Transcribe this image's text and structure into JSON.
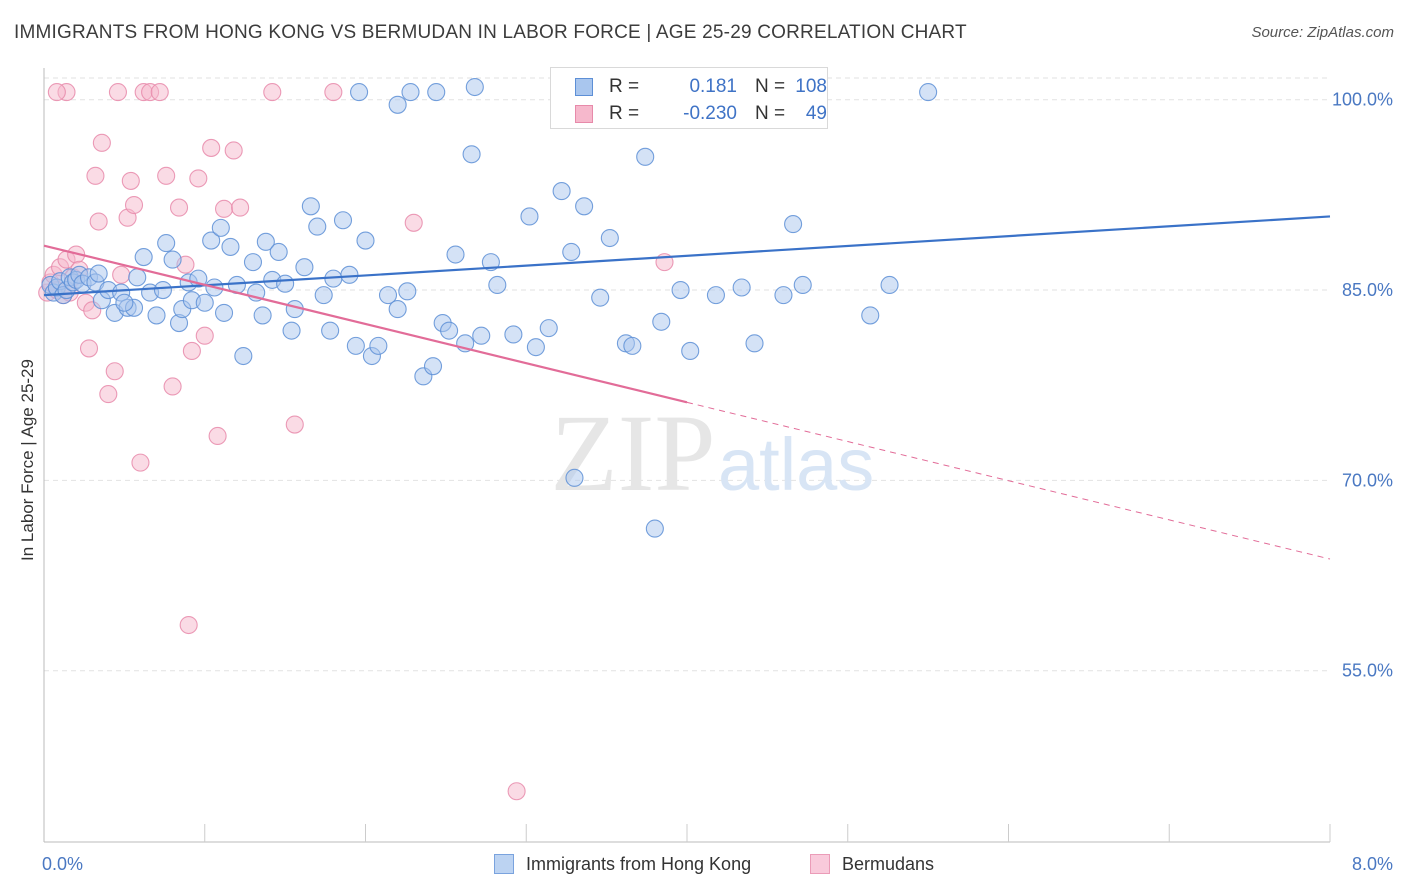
{
  "title": "IMMIGRANTS FROM HONG KONG VS BERMUDAN IN LABOR FORCE | AGE 25-29 CORRELATION CHART",
  "source": "Source: ZipAtlas.com",
  "watermark": {
    "zip": "ZIP",
    "atlas": "atlas"
  },
  "legend_top": {
    "rows": [
      {
        "r_label": "R =",
        "r_value": "0.181",
        "n_label": "N =",
        "n_value": "108"
      },
      {
        "r_label": "R =",
        "r_value": "-0.230",
        "n_label": "N =",
        "n_value": "49"
      }
    ]
  },
  "colors": {
    "blue_fill": "#a9c6ee",
    "blue_edge": "#5d8fd6",
    "blue_line": "#3a72c8",
    "pink_fill": "#f6b8cc",
    "pink_edge": "#e78aaa",
    "pink_line": "#e26c98",
    "tick_text": "#4a78c2",
    "grid": "#e2e2e2"
  },
  "chart_data": {
    "type": "scatter",
    "title": "IMMIGRANTS FROM HONG KONG VS BERMUDAN IN LABOR FORCE | AGE 25-29 CORRELATION CHART",
    "xlabel": "",
    "ylabel": "In Labor Force | Age 25-29",
    "xlim": [
      0,
      8
    ],
    "ylim": [
      41.5,
      102.5
    ],
    "x_tick_labels": [
      {
        "value": 0,
        "label": "0.0%"
      },
      {
        "value": 8,
        "label": "8.0%"
      }
    ],
    "y_tick_labels": [
      {
        "value": 100,
        "label": "100.0%"
      },
      {
        "value": 85,
        "label": "85.0%"
      },
      {
        "value": 70,
        "label": "70.0%"
      },
      {
        "value": 55,
        "label": "55.0%"
      }
    ],
    "grid": true,
    "legend_position": "bottom",
    "series": [
      {
        "name": "Immigrants from Hong Kong",
        "color": "blue",
        "trend": {
          "x": [
            0.0,
            8.0
          ],
          "y": [
            84.6,
            90.8
          ],
          "dashed_from": null
        },
        "points": [
          [
            0.04,
            85.4
          ],
          [
            0.06,
            84.8
          ],
          [
            0.08,
            85.2
          ],
          [
            0.1,
            85.7
          ],
          [
            0.12,
            84.6
          ],
          [
            0.14,
            85.0
          ],
          [
            0.16,
            86.0
          ],
          [
            0.18,
            85.6
          ],
          [
            0.2,
            85.8
          ],
          [
            0.22,
            86.2
          ],
          [
            0.24,
            85.5
          ],
          [
            0.28,
            86.0
          ],
          [
            0.32,
            85.6
          ],
          [
            0.36,
            84.2
          ],
          [
            0.4,
            85.0
          ],
          [
            0.44,
            83.2
          ],
          [
            0.48,
            84.8
          ],
          [
            0.52,
            83.6
          ],
          [
            0.56,
            83.6
          ],
          [
            0.58,
            86.0
          ],
          [
            0.62,
            87.6
          ],
          [
            0.66,
            84.8
          ],
          [
            0.7,
            83.0
          ],
          [
            0.74,
            85.0
          ],
          [
            0.76,
            88.7
          ],
          [
            0.8,
            87.4
          ],
          [
            0.84,
            82.4
          ],
          [
            0.86,
            83.5
          ],
          [
            0.9,
            85.6
          ],
          [
            0.92,
            84.2
          ],
          [
            0.96,
            85.9
          ],
          [
            1.0,
            84.0
          ],
          [
            1.04,
            88.9
          ],
          [
            1.06,
            85.2
          ],
          [
            1.1,
            89.9
          ],
          [
            1.12,
            83.2
          ],
          [
            1.16,
            88.4
          ],
          [
            1.2,
            85.4
          ],
          [
            1.24,
            79.8
          ],
          [
            1.3,
            87.2
          ],
          [
            1.32,
            84.8
          ],
          [
            1.36,
            83.0
          ],
          [
            1.38,
            88.8
          ],
          [
            1.42,
            85.8
          ],
          [
            1.46,
            88.0
          ],
          [
            1.5,
            85.5
          ],
          [
            1.54,
            81.8
          ],
          [
            1.56,
            83.5
          ],
          [
            1.62,
            86.8
          ],
          [
            1.66,
            91.6
          ],
          [
            1.7,
            90.0
          ],
          [
            1.74,
            84.6
          ],
          [
            1.78,
            81.8
          ],
          [
            1.8,
            85.9
          ],
          [
            1.86,
            90.5
          ],
          [
            1.9,
            86.2
          ],
          [
            1.94,
            80.6
          ],
          [
            2.0,
            88.9
          ],
          [
            2.04,
            79.8
          ],
          [
            2.08,
            80.6
          ],
          [
            2.14,
            84.6
          ],
          [
            2.2,
            83.5
          ],
          [
            2.26,
            84.9
          ],
          [
            2.36,
            78.2
          ],
          [
            2.42,
            79.0
          ],
          [
            2.48,
            82.4
          ],
          [
            2.52,
            81.8
          ],
          [
            2.56,
            87.8
          ],
          [
            2.62,
            80.8
          ],
          [
            2.66,
            95.7
          ],
          [
            2.72,
            81.4
          ],
          [
            2.78,
            87.2
          ],
          [
            2.82,
            85.4
          ],
          [
            2.92,
            81.5
          ],
          [
            3.02,
            90.8
          ],
          [
            3.06,
            80.5
          ],
          [
            3.14,
            82.0
          ],
          [
            3.22,
            92.8
          ],
          [
            3.28,
            88.0
          ],
          [
            3.36,
            91.6
          ],
          [
            3.46,
            84.4
          ],
          [
            3.52,
            89.1
          ],
          [
            3.62,
            80.8
          ],
          [
            3.66,
            80.6
          ],
          [
            3.74,
            95.5
          ],
          [
            3.84,
            82.5
          ],
          [
            3.96,
            85.0
          ],
          [
            4.02,
            80.2
          ],
          [
            4.18,
            84.6
          ],
          [
            4.34,
            85.2
          ],
          [
            4.42,
            80.8
          ],
          [
            4.6,
            84.6
          ],
          [
            4.66,
            90.2
          ],
          [
            4.72,
            85.4
          ],
          [
            5.14,
            83.0
          ],
          [
            5.26,
            85.4
          ],
          [
            2.28,
            100.6
          ],
          [
            2.44,
            100.6
          ],
          [
            1.96,
            100.6
          ],
          [
            2.2,
            99.6
          ],
          [
            4.0,
            100.6
          ],
          [
            4.26,
            100.6
          ],
          [
            5.5,
            100.6
          ],
          [
            3.3,
            70.2
          ],
          [
            3.8,
            66.2
          ],
          [
            2.68,
            101.0
          ],
          [
            0.5,
            84.0
          ],
          [
            0.34,
            86.3
          ]
        ]
      },
      {
        "name": "Bermudans",
        "color": "pink",
        "trend": {
          "x": [
            0.0,
            8.0
          ],
          "y": [
            88.5,
            63.8
          ],
          "dashed_from": 4.0
        },
        "points": [
          [
            0.02,
            84.8
          ],
          [
            0.04,
            85.6
          ],
          [
            0.06,
            86.2
          ],
          [
            0.08,
            85.0
          ],
          [
            0.1,
            86.8
          ],
          [
            0.12,
            84.6
          ],
          [
            0.14,
            87.4
          ],
          [
            0.16,
            84.8
          ],
          [
            0.18,
            86.0
          ],
          [
            0.2,
            87.8
          ],
          [
            0.22,
            86.6
          ],
          [
            0.26,
            84.0
          ],
          [
            0.28,
            80.4
          ],
          [
            0.3,
            83.4
          ],
          [
            0.32,
            94.0
          ],
          [
            0.34,
            90.4
          ],
          [
            0.36,
            96.6
          ],
          [
            0.4,
            76.8
          ],
          [
            0.44,
            78.6
          ],
          [
            0.48,
            86.2
          ],
          [
            0.52,
            90.7
          ],
          [
            0.54,
            93.6
          ],
          [
            0.56,
            91.7
          ],
          [
            0.6,
            71.4
          ],
          [
            0.62,
            100.6
          ],
          [
            0.66,
            100.6
          ],
          [
            0.72,
            100.6
          ],
          [
            0.76,
            94.0
          ],
          [
            0.8,
            77.4
          ],
          [
            0.84,
            91.5
          ],
          [
            0.88,
            87.0
          ],
          [
            0.92,
            80.2
          ],
          [
            0.96,
            93.8
          ],
          [
            1.0,
            81.4
          ],
          [
            1.04,
            96.2
          ],
          [
            1.08,
            73.5
          ],
          [
            1.12,
            91.4
          ],
          [
            1.18,
            96.0
          ],
          [
            1.22,
            91.5
          ],
          [
            1.42,
            100.6
          ],
          [
            1.56,
            74.4
          ],
          [
            1.8,
            100.6
          ],
          [
            2.3,
            90.3
          ],
          [
            2.94,
            45.5
          ],
          [
            3.86,
            87.2
          ],
          [
            0.9,
            58.6
          ],
          [
            0.14,
            100.6
          ],
          [
            0.46,
            100.6
          ],
          [
            0.08,
            100.6
          ]
        ]
      }
    ]
  },
  "legend_bottom": {
    "items": [
      {
        "label": "Immigrants from Hong Kong"
      },
      {
        "label": "Bermudans"
      }
    ]
  }
}
